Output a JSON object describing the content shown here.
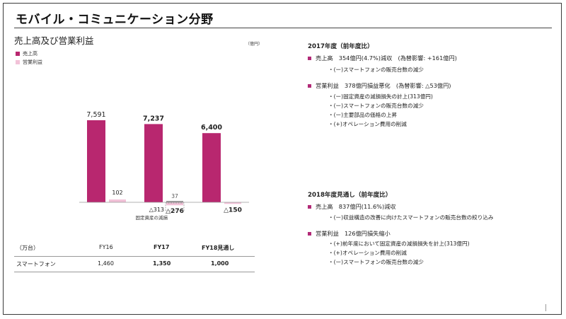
{
  "title": "モバイル・コミュニケーション分野",
  "colors": {
    "sales": "#b8276f",
    "op": "#f2c2d8",
    "accent": "#b22a77"
  },
  "chart_data": {
    "type": "bar",
    "title": "売上高及び営業利益",
    "unit": "（億円）",
    "categories": [
      "FY16",
      "FY17",
      "FY18見通し"
    ],
    "series": [
      {
        "name": "売上高",
        "values": [
          7591,
          7237,
          6400
        ],
        "labels": [
          "7,591",
          "7,237",
          "6,400"
        ]
      },
      {
        "name": "営業利益",
        "values": [
          102,
          -276,
          -150
        ],
        "labels": [
          "102",
          "△276",
          "△150"
        ]
      }
    ],
    "annotations": {
      "fy17_fixed_asset_label": "37",
      "fy17_fixed_asset_impairment": "△313",
      "fy17_fixed_asset_caption": "固定資産の減損"
    }
  },
  "table": {
    "unit_label": "（万台）",
    "headers": [
      "FY16",
      "FY17",
      "FY18見通し"
    ],
    "row_label": "スマートフォン",
    "values": [
      "1,460",
      "1,350",
      "1,000"
    ]
  },
  "right": {
    "s2017": {
      "heading": "2017年度（前年度比）",
      "sales_line": "売上高　354億円(4.7%)減収　(為替影響: +161億円)",
      "sales_subs": [
        "・(ー)スマートフォンの販売台数の減少"
      ],
      "op_line": "営業利益　378億円損益悪化　(為替影響: △53億円)",
      "op_subs": [
        "・(ー)固定資産の減損損失の計上(313億円)",
        "・(ー)スマートフォンの販売台数の減少",
        "・(ー)主要部品の価格の上昇",
        "・(+)オペレーション費用の削減"
      ]
    },
    "s2018": {
      "heading": "2018年度見通し（前年度比）",
      "sales_line": "売上高　837億円(11.6%)減収",
      "sales_subs": [
        "・(ー)収益構造の改善に向けたスマートフォンの販売台数の絞り込み"
      ],
      "op_line": "営業利益　126億円損失縮小",
      "op_subs": [
        "・(+)前年度において固定資産の減損損失を計上(313億円)",
        "・(+)オペレーション費用の削減",
        "・(ー)スマートフォンの販売台数の減少"
      ]
    }
  }
}
